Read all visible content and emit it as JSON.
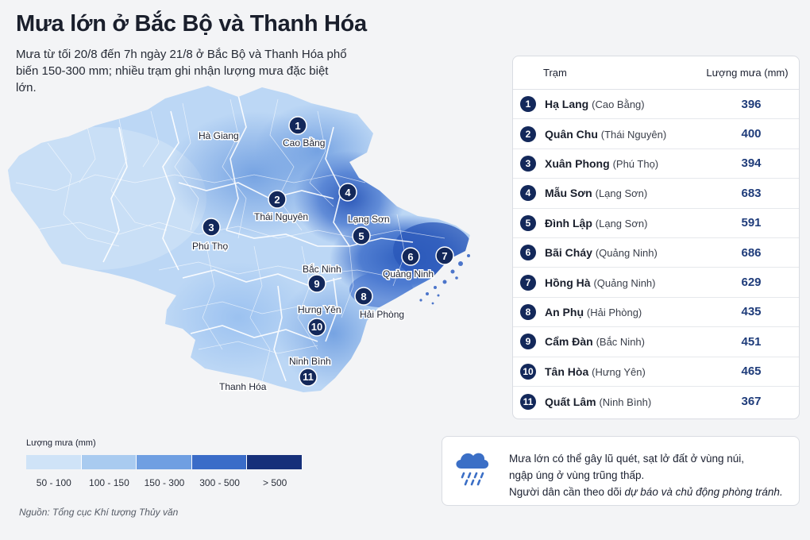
{
  "header": {
    "title": "Mưa lớn ở Bắc Bộ và Thanh Hóa",
    "subtitle": "Mưa từ tối 20/8 đến 7h ngày 21/8 ở Bắc Bộ và Thanh Hóa phổ biến 150-300 mm; nhiều trạm ghi nhận lượng mưa đặc biệt lớn."
  },
  "map": {
    "province_labels": {
      "ha_giang": "Hà Giang",
      "cao_bang": "Cao Bằng",
      "thai_nguyen": "Thái Nguyên",
      "lang_son": "Lạng Sơn",
      "phu_tho": "Phú Thọ",
      "bac_ninh": "Bắc Ninh",
      "quang_ninh": "Quảng Ninh",
      "hung_yen": "Hưng Yên",
      "hai_phong": "Hải Phòng",
      "ninh_binh": "Ninh Bình",
      "thanh_hoa": "Thanh Hóa"
    },
    "markers": [
      "1",
      "2",
      "3",
      "4",
      "5",
      "6",
      "7",
      "8",
      "9",
      "10",
      "11"
    ]
  },
  "legend": {
    "title": "Lượng mưa",
    "unit": "(mm)",
    "classes": [
      {
        "label": "50 - 100",
        "color": "#cfe3f7"
      },
      {
        "label": "100 - 150",
        "color": "#a9cbf0"
      },
      {
        "label": "150 - 300",
        "color": "#6f9fe2"
      },
      {
        "label": "300 - 500",
        "color": "#3a6cc8"
      },
      {
        "label": "> 500",
        "color": "#16307a"
      }
    ]
  },
  "source": "Nguồn: Tổng cục Khí tượng Thủy văn",
  "table": {
    "header_station": "Trạm",
    "header_amount": "Lượng mưa (mm)",
    "rows": [
      {
        "no": "1",
        "name": "Hạ Lang",
        "province": "(Cao Bằng)",
        "amount": "396"
      },
      {
        "no": "2",
        "name": "Quân Chu",
        "province": "(Thái Nguyên)",
        "amount": "400"
      },
      {
        "no": "3",
        "name": "Xuân Phong",
        "province": "(Phú Thọ)",
        "amount": "394"
      },
      {
        "no": "4",
        "name": "Mẫu Sơn",
        "province": "(Lạng Sơn)",
        "amount": "683"
      },
      {
        "no": "5",
        "name": "Đình Lập",
        "province": "(Lạng Sơn)",
        "amount": "591"
      },
      {
        "no": "6",
        "name": "Bãi Cháy",
        "province": "(Quảng Ninh)",
        "amount": "686"
      },
      {
        "no": "7",
        "name": "Hồng Hà",
        "province": "(Quảng Ninh)",
        "amount": "629"
      },
      {
        "no": "8",
        "name": "An Phụ",
        "province": "(Hải Phòng)",
        "amount": "435"
      },
      {
        "no": "9",
        "name": "Cẩm Đàn",
        "province": "(Bắc Ninh)",
        "amount": "451"
      },
      {
        "no": "10",
        "name": "Tân Hòa",
        "province": "(Hưng Yên)",
        "amount": "465"
      },
      {
        "no": "11",
        "name": "Quất Lâm",
        "province": "(Ninh Bình)",
        "amount": "367"
      }
    ]
  },
  "note": {
    "icon": "rain-cloud-icon",
    "line1": "Mưa lớn có thể gây lũ quét, sạt lở đất ở vùng núi,",
    "line2": "ngập úng ở vùng trũng thấp.",
    "line3_prefix": "Người dân cần theo dõi ",
    "line3_emphasis": "dự báo và chủ động phòng tránh."
  }
}
